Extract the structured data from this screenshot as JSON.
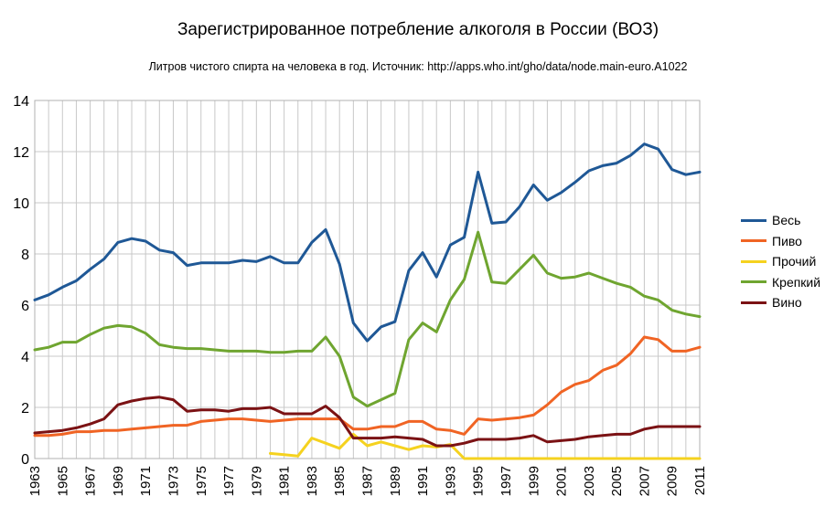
{
  "chart_data": {
    "type": "line",
    "title": "Зарегистрированное потребление алкоголя в России (ВОЗ)",
    "subtitle": "Литров чистого спирта на человека в год. Источник: http://apps.who.int/gho/data/node.main-euro.A1022",
    "xlabel": "",
    "ylabel": "",
    "ylim": [
      0,
      14
    ],
    "yticks": [
      "0",
      "2",
      "4",
      "6",
      "8",
      "10",
      "12",
      "14"
    ],
    "xticks": [
      "1963",
      "1965",
      "1967",
      "1969",
      "1971",
      "1973",
      "1975",
      "1977",
      "1979",
      "1981",
      "1983",
      "1985",
      "1987",
      "1989",
      "1991",
      "1993",
      "1995",
      "1997",
      "1999",
      "2001",
      "2003",
      "2005",
      "2007",
      "2009",
      "2011"
    ],
    "grid": true,
    "legend_position": "right",
    "x": [
      1963,
      1964,
      1965,
      1966,
      1967,
      1968,
      1969,
      1970,
      1971,
      1972,
      1973,
      1974,
      1975,
      1976,
      1977,
      1978,
      1979,
      1980,
      1981,
      1982,
      1983,
      1984,
      1985,
      1986,
      1987,
      1988,
      1989,
      1990,
      1991,
      1992,
      1993,
      1994,
      1995,
      1996,
      1997,
      1998,
      1999,
      2000,
      2001,
      2002,
      2003,
      2004,
      2005,
      2006,
      2007,
      2008,
      2009,
      2010,
      2011
    ],
    "series": [
      {
        "name": "Весь",
        "color": "#1f5896",
        "values": [
          6.2,
          6.4,
          6.7,
          6.95,
          7.4,
          7.8,
          8.45,
          8.6,
          8.5,
          8.15,
          8.05,
          7.55,
          7.65,
          7.65,
          7.65,
          7.75,
          7.7,
          7.9,
          7.65,
          7.65,
          8.45,
          8.95,
          7.6,
          5.3,
          4.6,
          5.15,
          5.35,
          7.35,
          8.05,
          7.1,
          8.35,
          8.65,
          11.2,
          9.2,
          9.25,
          9.85,
          10.7,
          10.1,
          10.4,
          10.8,
          11.25,
          11.45,
          11.55,
          11.85,
          12.3,
          12.1,
          11.3,
          11.1,
          11.2
        ]
      },
      {
        "name": "Пиво",
        "color": "#f06424",
        "values": [
          0.9,
          0.9,
          0.95,
          1.05,
          1.05,
          1.1,
          1.1,
          1.15,
          1.2,
          1.25,
          1.3,
          1.3,
          1.45,
          1.5,
          1.55,
          1.55,
          1.5,
          1.45,
          1.5,
          1.55,
          1.55,
          1.55,
          1.55,
          1.15,
          1.15,
          1.25,
          1.25,
          1.45,
          1.45,
          1.15,
          1.1,
          0.95,
          1.55,
          1.5,
          1.55,
          1.6,
          1.7,
          2.1,
          2.6,
          2.9,
          3.05,
          3.45,
          3.65,
          4.1,
          4.75,
          4.65,
          4.2,
          4.2,
          4.35
        ]
      },
      {
        "name": "Прочий",
        "color": "#f5d21f",
        "values": [
          null,
          null,
          null,
          null,
          null,
          null,
          null,
          null,
          null,
          null,
          null,
          null,
          null,
          null,
          null,
          null,
          null,
          0.2,
          0.15,
          0.1,
          0.8,
          0.6,
          0.4,
          0.95,
          0.5,
          0.65,
          0.5,
          0.35,
          0.5,
          0.45,
          0.55,
          0.0,
          0.0,
          0.0,
          0.0,
          0.0,
          0.0,
          0.0,
          0.0,
          0.0,
          0.0,
          0.0,
          0.0,
          0.0,
          0.0,
          0.0,
          0.0,
          0.0,
          0.0
        ]
      },
      {
        "name": "Крепкий",
        "color": "#6fa530",
        "values": [
          4.25,
          4.35,
          4.55,
          4.55,
          4.85,
          5.1,
          5.2,
          5.15,
          4.9,
          4.45,
          4.35,
          4.3,
          4.3,
          4.25,
          4.2,
          4.2,
          4.2,
          4.15,
          4.15,
          4.2,
          4.2,
          4.75,
          4.0,
          2.4,
          2.05,
          2.3,
          2.55,
          4.65,
          5.3,
          4.95,
          6.2,
          7.0,
          8.85,
          6.9,
          6.85,
          7.4,
          7.95,
          7.25,
          7.05,
          7.1,
          7.25,
          7.05,
          6.85,
          6.7,
          6.35,
          6.2,
          5.8,
          5.65,
          5.55
        ]
      },
      {
        "name": "Вино",
        "color": "#7b1214",
        "values": [
          1.0,
          1.05,
          1.1,
          1.2,
          1.35,
          1.55,
          2.1,
          2.25,
          2.35,
          2.4,
          2.3,
          1.85,
          1.9,
          1.9,
          1.85,
          1.95,
          1.95,
          2.0,
          1.75,
          1.75,
          1.75,
          2.05,
          1.6,
          0.8,
          0.8,
          0.8,
          0.85,
          0.8,
          0.75,
          0.5,
          0.5,
          0.6,
          0.75,
          0.75,
          0.75,
          0.8,
          0.9,
          0.65,
          0.7,
          0.75,
          0.85,
          0.9,
          0.95,
          0.95,
          1.15,
          1.25,
          1.25,
          1.25,
          1.25
        ]
      }
    ]
  }
}
